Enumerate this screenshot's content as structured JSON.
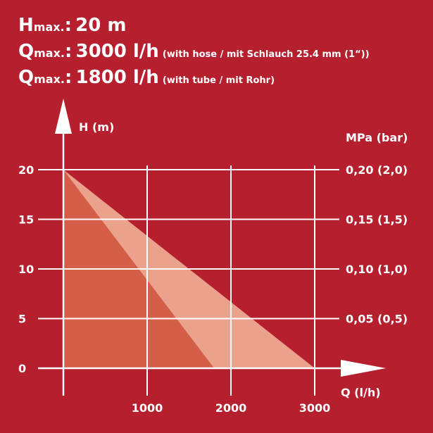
{
  "header": {
    "lines": [
      {
        "symbol": "H",
        "subscript": "max.",
        "sep": ":",
        "value": "20 m",
        "note": ""
      },
      {
        "symbol": "Q",
        "subscript": "max.",
        "sep": ":",
        "value": "3000 l/h",
        "note": "(with hose / mit Schlauch 25.4 mm (1“))"
      },
      {
        "symbol": "Q",
        "subscript": "max.",
        "sep": ":",
        "value": "1800 l/h",
        "note": "(with tube / mit Rohr)"
      }
    ]
  },
  "chart_data": {
    "type": "area",
    "title": "",
    "ylabel": "H (m)",
    "xlabel": "Q (l/h)",
    "y2label": "MPa (bar)",
    "xlim": [
      0,
      3000
    ],
    "ylim": [
      0,
      20
    ],
    "x_ticks": [
      "1000",
      "2000",
      "3000"
    ],
    "x_tick_values": [
      1000,
      2000,
      3000
    ],
    "y_ticks": [
      "0",
      "5",
      "10",
      "15",
      "20"
    ],
    "y_tick_values": [
      0,
      5,
      10,
      15,
      20
    ],
    "y2_ticks": [
      "0,05 (0,5)",
      "0,10 (1,0)",
      "0,15 (1,5)",
      "0,20 (2,0)"
    ],
    "y2_tick_values": [
      5,
      10,
      15,
      20
    ],
    "grid": true,
    "series": [
      {
        "x": [
          0,
          3000
        ],
        "y": [
          20,
          0
        ],
        "color": "#eaa28c"
      },
      {
        "x": [
          0,
          1800
        ],
        "y": [
          20,
          0
        ],
        "color": "#d55e48"
      }
    ]
  }
}
